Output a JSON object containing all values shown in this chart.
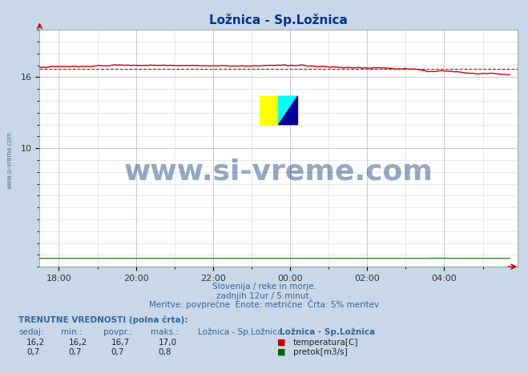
{
  "title": "Ložnica - Sp.Ložnica",
  "title_color": "#003399",
  "bg_color": "#c8d8e8",
  "plot_bg_color": "#ffffff",
  "grid_color_major": "#aaaacc",
  "grid_color_minor": "#ccccdd",
  "temp_avg": 16.7,
  "temp_min": 16.2,
  "temp_max": 17.0,
  "temp_sedaj": 16.2,
  "flow_avg": 0.7,
  "flow_min": 0.7,
  "flow_max": 0.8,
  "flow_sedaj": 0.7,
  "temp_line_color": "#cc0000",
  "temp_avg_line_color": "#cc0000",
  "flow_line_color": "#006600",
  "watermark_text": "www.si-vreme.com",
  "watermark_color": "#1a3a7a",
  "watermark_alpha": 0.45,
  "footer_line1": "Slovenija / reke in morje.",
  "footer_line2": "zadnjih 12ur / 5 minut.",
  "footer_line3": "Meritve: povprečne  Enote: metrične  Črta: 5% meritev",
  "footer_color": "#336699",
  "left_label": "www.si-vreme.com",
  "left_label_color": "#336699",
  "table_header": "TRENUTNE VREDNOSTI (polna črta):",
  "table_col_headers": [
    "sedaj:",
    "min.:",
    "povpr.:",
    "maks.:",
    "Ložnica - Sp.Ložnica"
  ],
  "table_row1": [
    "16,2",
    "16,2",
    "16,7",
    "17,0"
  ],
  "table_row1_label": "temperatura[C]",
  "table_row1_color": "#cc0000",
  "table_row2": [
    "0,7",
    "0,7",
    "0,7",
    "0,8"
  ],
  "table_row2_label": "pretok[m3/s]",
  "table_row2_color": "#006600",
  "ylim": [
    0,
    20
  ],
  "ytick_vals": [
    10,
    16
  ],
  "ytick_labels": [
    "10",
    "16"
  ],
  "xtick_positions": [
    18,
    20,
    22,
    24,
    26,
    28
  ],
  "xtick_labels": [
    "18:00",
    "20:00",
    "22:00",
    "00:00",
    "02:00",
    "04:00"
  ],
  "xlim": [
    17.5,
    29.9
  ]
}
